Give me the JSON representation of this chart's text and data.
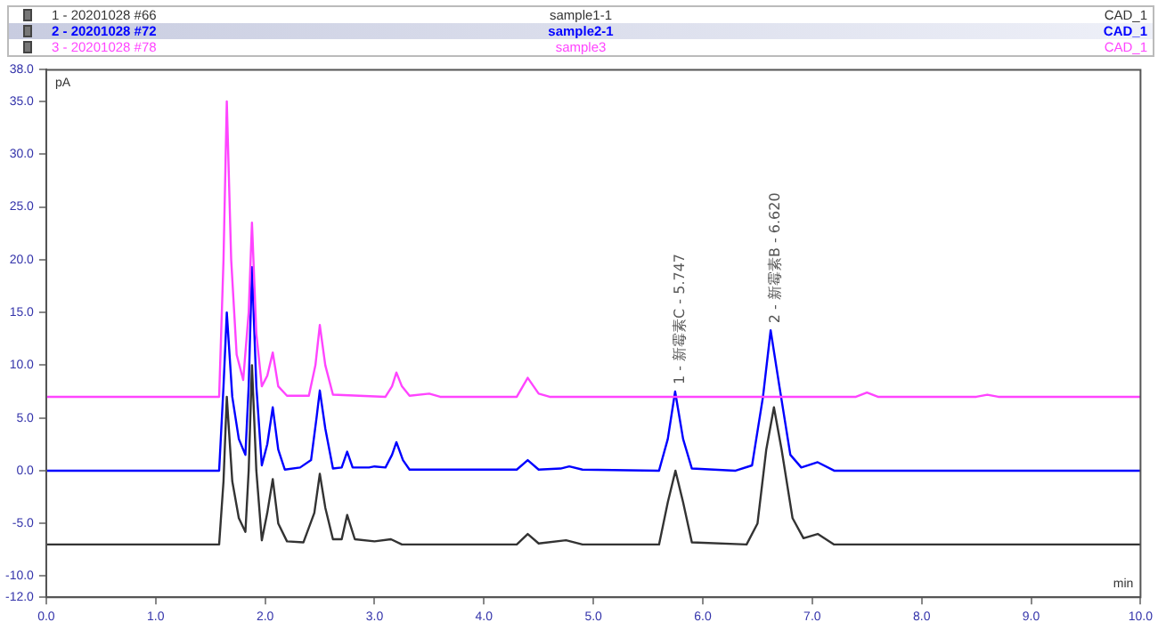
{
  "chart_data": {
    "type": "line",
    "xlabel": "min",
    "ylabel": "pA",
    "legend": "top",
    "marker": "none",
    "line_style": "solid",
    "grid": false,
    "xlim": [
      0,
      10
    ],
    "xticks": [
      {
        "value": 0,
        "label": "0.0"
      },
      {
        "value": 1,
        "label": "1.0"
      },
      {
        "value": 2,
        "label": "2.0"
      },
      {
        "value": 3,
        "label": "3.0"
      },
      {
        "value": 4,
        "label": "4.0"
      },
      {
        "value": 5,
        "label": "5.0"
      },
      {
        "value": 6,
        "label": "6.0"
      },
      {
        "value": 7,
        "label": "7.0"
      },
      {
        "value": 8,
        "label": "8.0"
      },
      {
        "value": 9,
        "label": "9.0"
      },
      {
        "value": 10,
        "label": "10.0"
      }
    ],
    "ylim": [
      -12,
      38
    ],
    "yticks": [
      {
        "value": -12,
        "label": "-12.0"
      },
      {
        "value": -10,
        "label": "-10.0"
      },
      {
        "value": -5,
        "label": "-5.0"
      },
      {
        "value": 0,
        "label": "0.0"
      },
      {
        "value": 5,
        "label": "5.0"
      },
      {
        "value": 10,
        "label": "10.0"
      },
      {
        "value": 15,
        "label": "15.0"
      },
      {
        "value": 20,
        "label": "20.0"
      },
      {
        "value": 25,
        "label": "25.0"
      },
      {
        "value": 30,
        "label": "30.0"
      },
      {
        "value": 35,
        "label": "35.0"
      },
      {
        "value": 38,
        "label": "38.0"
      }
    ],
    "series": [
      {
        "name": "1 - 20201028 #66",
        "color": "#333333",
        "x": [
          0,
          1.58,
          1.62,
          1.65,
          1.7,
          1.76,
          1.82,
          1.85,
          1.88,
          1.92,
          1.97,
          2.02,
          2.07,
          2.12,
          2.2,
          2.35,
          2.45,
          2.5,
          2.55,
          2.62,
          2.7,
          2.75,
          2.82,
          3.0,
          3.15,
          3.25,
          4.3,
          4.4,
          4.5,
          4.75,
          4.9,
          5.6,
          5.68,
          5.75,
          5.82,
          5.9,
          6.4,
          6.5,
          6.58,
          6.65,
          6.72,
          6.82,
          6.92,
          7.05,
          7.2,
          10
        ],
        "values": [
          -7,
          -7,
          -1,
          7,
          -1,
          -4.5,
          -5.8,
          0,
          10,
          0,
          -6.6,
          -4,
          -0.8,
          -5,
          -6.7,
          -6.8,
          -4,
          -0.3,
          -3.5,
          -6.5,
          -6.5,
          -4.2,
          -6.5,
          -6.7,
          -6.5,
          -7,
          -7,
          -6,
          -6.9,
          -6.6,
          -7,
          -7,
          -3,
          0,
          -3,
          -6.8,
          -7,
          -5,
          2,
          6,
          2,
          -4.5,
          -6.4,
          -6,
          -7,
          -7
        ]
      },
      {
        "name": "2 - 20201028 #72",
        "color": "#0000ff",
        "x": [
          0,
          1.58,
          1.62,
          1.65,
          1.7,
          1.76,
          1.82,
          1.85,
          1.88,
          1.92,
          1.97,
          2.02,
          2.07,
          2.12,
          2.18,
          2.32,
          2.42,
          2.47,
          2.5,
          2.55,
          2.62,
          2.7,
          2.75,
          2.8,
          2.95,
          3.0,
          3.1,
          3.16,
          3.2,
          3.26,
          3.32,
          3.7,
          4.3,
          4.4,
          4.5,
          4.7,
          4.78,
          4.9,
          5.6,
          5.68,
          5.747,
          5.82,
          5.9,
          6.3,
          6.45,
          6.55,
          6.62,
          6.7,
          6.8,
          6.9,
          7.05,
          7.2,
          10
        ],
        "values": [
          0,
          0,
          8,
          15,
          7,
          3,
          1.5,
          8,
          19.3,
          8,
          0.5,
          2.5,
          6,
          2,
          0.1,
          0.3,
          1,
          5,
          7.6,
          4,
          0.2,
          0.3,
          1.8,
          0.3,
          0.3,
          0.4,
          0.3,
          1.5,
          2.7,
          1,
          0.1,
          0.1,
          0.1,
          1,
          0.1,
          0.2,
          0.4,
          0.1,
          0,
          3,
          7.5,
          3,
          0.2,
          0,
          0.5,
          7,
          13.3,
          8,
          1.5,
          0.3,
          0.8,
          0,
          0
        ]
      },
      {
        "name": "3 - 20201028 #78",
        "color": "#ff44ff",
        "x": [
          0,
          1.58,
          1.62,
          1.65,
          1.69,
          1.74,
          1.8,
          1.85,
          1.88,
          1.92,
          1.97,
          2.02,
          2.07,
          2.12,
          2.2,
          2.4,
          2.46,
          2.5,
          2.55,
          2.62,
          3.1,
          3.16,
          3.2,
          3.25,
          3.32,
          3.5,
          3.6,
          4.3,
          4.4,
          4.5,
          4.6,
          7.4,
          7.5,
          7.6,
          8.5,
          8.6,
          8.7,
          10
        ],
        "values": [
          7,
          7,
          20,
          35,
          20,
          11,
          8.6,
          15,
          23.5,
          13,
          8,
          9,
          11.2,
          8,
          7.1,
          7.1,
          10,
          13.8,
          10,
          7.2,
          7,
          8,
          9.3,
          8,
          7.1,
          7.3,
          7,
          7,
          8.8,
          7.3,
          7,
          7,
          7.4,
          7,
          7,
          7.2,
          7,
          7
        ]
      }
    ],
    "annotations": [
      "sample1-1",
      "CAD_1",
      "sample2-1",
      "CAD_1",
      "sample3",
      "CAD_1",
      {
        "text": "1 - 新霉素C - 5.747",
        "x": 5.747,
        "y": 7.5
      },
      {
        "text": "2 - 新霉素B - 6.620",
        "x": 6.62,
        "y": 13.3
      }
    ]
  }
}
